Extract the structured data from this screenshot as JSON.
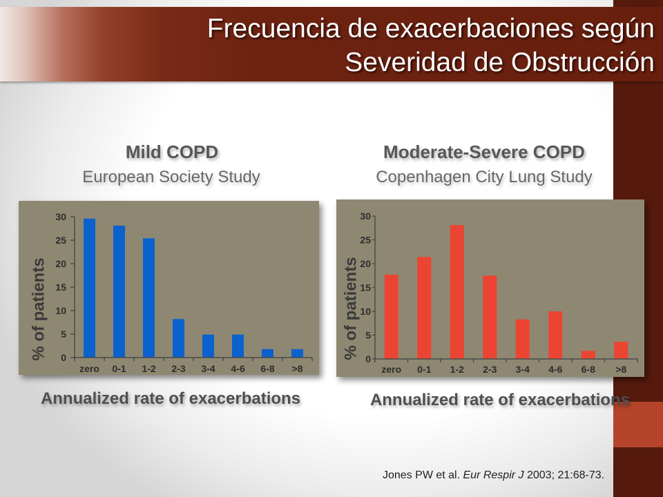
{
  "slide": {
    "title_lines": [
      "Frecuencia de exacerbaciones según",
      "Severidad de Obstrucción"
    ],
    "citation": {
      "authors": "Jones PW et al.",
      "journal": "Eur Respir J",
      "details": "2003; 21:68-73."
    },
    "theme": {
      "title_bar": "#6e2311",
      "side_strip": "#561a0d",
      "side_accent": "#b5442a",
      "title_text": "#ffffff"
    }
  },
  "chart_data": [
    {
      "type": "bar",
      "title": "Mild COPD",
      "subtitle": "European Society Study",
      "xlabel": "Annualized rate of exacerbations",
      "ylabel": "% of patients",
      "categories": [
        "zero",
        "0-1",
        "1-2",
        "2-3",
        "3-4",
        "4-6",
        "6-8",
        ">8"
      ],
      "values": [
        29.6,
        28.1,
        25.4,
        8.2,
        4.9,
        4.9,
        1.8,
        1.8
      ],
      "ylim": [
        0,
        30
      ],
      "yticks": [
        0,
        5,
        10,
        15,
        20,
        25,
        30
      ],
      "grid": false,
      "legend": false,
      "bar_color": "#0b61cd",
      "background_color": "#8e8872"
    },
    {
      "type": "bar",
      "title": "Moderate-Severe COPD",
      "subtitle": "Copenhagen City Lung Study",
      "xlabel": "Annualized rate of exacerbations",
      "ylabel": "% of patients",
      "categories": [
        "zero",
        "0-1",
        "1-2",
        "2-3",
        "3-4",
        "4-6",
        "6-8",
        ">8"
      ],
      "values": [
        17.7,
        21.4,
        28.1,
        17.5,
        8.3,
        10.0,
        1.7,
        3.6
      ],
      "ylim": [
        0,
        30
      ],
      "yticks": [
        0,
        5,
        10,
        15,
        20,
        25,
        30
      ],
      "grid": false,
      "legend": false,
      "bar_color": "#ec4432",
      "background_color": "#8e8872"
    }
  ]
}
